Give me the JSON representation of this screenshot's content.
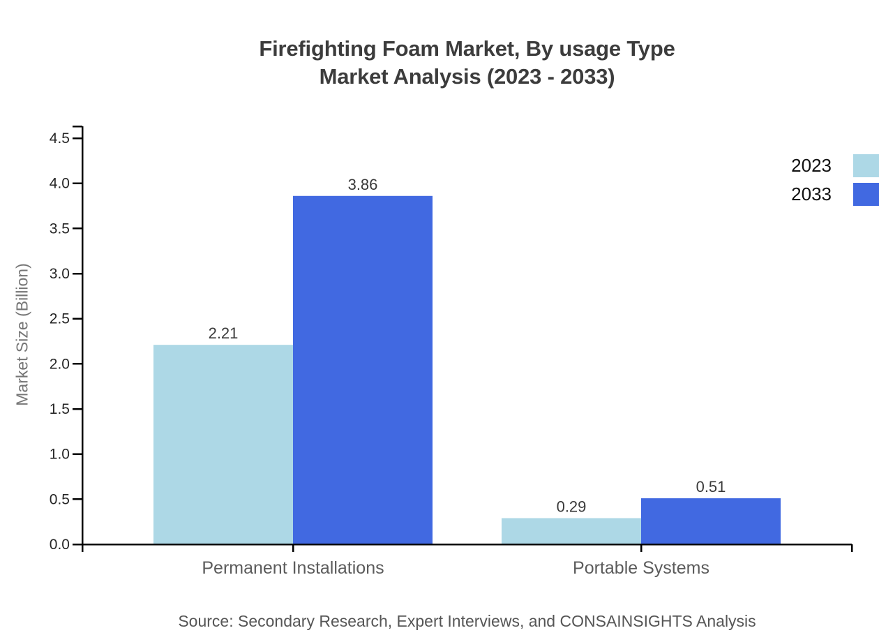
{
  "chart": {
    "title_line1": "Firefighting Foam Market, By usage Type",
    "title_line2": "Market Analysis (2023 - 2033)",
    "source": "Source: Secondary Research, Expert Interviews, and CONSAINSIGHTS Analysis"
  },
  "chart_data": {
    "type": "bar",
    "title": "Firefighting Foam Market, By usage Type Market Analysis (2023 - 2033)",
    "categories": [
      "Permanent Installations",
      "Portable Systems"
    ],
    "series": [
      {
        "name": "2023",
        "color": "#ADD8E6",
        "values": [
          2.21,
          0.29
        ]
      },
      {
        "name": "2033",
        "color": "#4169E1",
        "values": [
          3.86,
          0.51
        ]
      }
    ],
    "value_labels": [
      [
        "2.21",
        "0.29"
      ],
      [
        "3.86",
        "0.51"
      ]
    ],
    "xlabel": "",
    "ylabel": "Market Size (Billion)",
    "ylim": [
      0,
      4.5
    ],
    "ytick_step": 0.5,
    "grid": false,
    "legend_position": "top-right",
    "axis_color": "#000000",
    "text_colors": {
      "title": "#3c3c3c",
      "tick_labels": "#262626",
      "category_labels": "#5c5c5c",
      "value_labels": "#3a3a3a",
      "legend": "#111111",
      "source": "#565656",
      "ylabel": "#757575"
    }
  }
}
